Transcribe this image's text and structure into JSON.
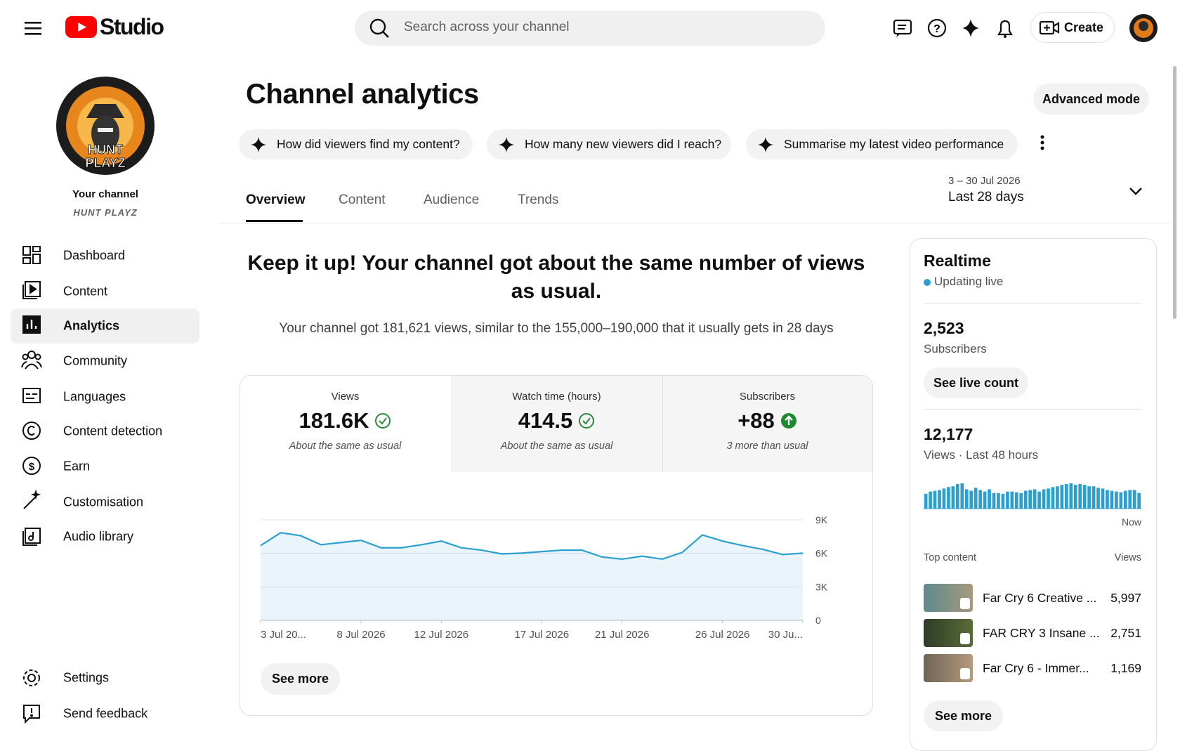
{
  "header": {
    "app_name": "Studio",
    "search_placeholder": "Search across your channel",
    "create": "Create"
  },
  "sidebar": {
    "channel_label": "Your channel",
    "channel_name": "HUNT PLAYZ",
    "avatar_text": [
      "HUNT",
      "PLAYZ"
    ],
    "nav": [
      "Dashboard",
      "Content",
      "Analytics",
      "Community",
      "Languages",
      "Content detection",
      "Earn",
      "Customisation",
      "Audio library"
    ],
    "footer_nav": [
      "Settings",
      "Send feedback"
    ]
  },
  "page": {
    "title": "Channel analytics",
    "advanced_mode": "Advanced mode",
    "suggestions": [
      "How did viewers find my content?",
      "How many new viewers did I reach?",
      "Summarise my latest video performance"
    ],
    "tabs": [
      "Overview",
      "Content",
      "Audience",
      "Trends"
    ],
    "date_range": "3 – 30 Jul 2026",
    "period": "Last 28 days"
  },
  "summary": {
    "headline": "Keep it up! Your channel got about the same number of views as usual.",
    "detail": "Your channel got 181,621 views, similar to the 155,000–190,000 that it usually gets in 28 days"
  },
  "metrics": [
    {
      "label": "Views",
      "value": "181.6K",
      "note": "About the same as usual"
    },
    {
      "label": "Watch time (hours)",
      "value": "414.5",
      "note": "About the same as usual"
    },
    {
      "label": "Subscribers",
      "value": "+88",
      "note": "3 more than usual"
    }
  ],
  "chart_data": [
    {
      "type": "line",
      "color": "#2ba0d0",
      "grid": true,
      "categories": [
        "3 Jul 20...",
        null,
        null,
        null,
        null,
        "8 Jul 2026",
        null,
        null,
        null,
        "12 Jul 2026",
        null,
        null,
        null,
        null,
        "17 Jul 2026",
        null,
        null,
        null,
        "21 Jul 2026",
        null,
        null,
        null,
        null,
        "26 Jul 2026",
        null,
        null,
        null,
        "30 Ju..."
      ],
      "values": [
        6700,
        7850,
        7580,
        6770,
        6970,
        7170,
        6500,
        6500,
        6770,
        7100,
        6500,
        6290,
        5950,
        6020,
        6160,
        6290,
        6290,
        5680,
        5480,
        5750,
        5480,
        6090,
        7650,
        7100,
        6700,
        6360,
        5890,
        6020
      ],
      "ylim": [
        0,
        9000
      ],
      "yticks": [
        {
          "value": 0,
          "label": "0"
        },
        {
          "value": 3000,
          "label": "3K"
        },
        {
          "value": 6000,
          "label": "6K"
        },
        {
          "value": 9000,
          "label": "9K"
        }
      ]
    },
    {
      "type": "bar",
      "color": "#2ba0d0",
      "categories": [
        null,
        null,
        null,
        null,
        null,
        null,
        null,
        null,
        null,
        null,
        null,
        null,
        null,
        null,
        null,
        null,
        null,
        null,
        null,
        null,
        null,
        null,
        null,
        null,
        null,
        null,
        null,
        null,
        null,
        null,
        null,
        null,
        null,
        null,
        null,
        null,
        null,
        null,
        null,
        null,
        null,
        null,
        null,
        null,
        null,
        null,
        null,
        "Now"
      ],
      "values": [
        200,
        230,
        240,
        250,
        270,
        290,
        300,
        330,
        340,
        260,
        240,
        280,
        250,
        230,
        260,
        210,
        210,
        200,
        230,
        230,
        220,
        210,
        240,
        250,
        260,
        230,
        260,
        270,
        290,
        300,
        320,
        330,
        340,
        320,
        330,
        320,
        300,
        300,
        280,
        270,
        250,
        240,
        230,
        220,
        240,
        250,
        250,
        210
      ]
    }
  ],
  "see_more": "See more",
  "realtime": {
    "title": "Realtime",
    "status": "Updating live",
    "subscribers_value": "2,523",
    "subscribers_label": "Subscribers",
    "see_live_count": "See live count",
    "views_value": "12,177",
    "views_label": "Views · Last 48 hours",
    "top_content_label": "Top content",
    "views_column": "Views",
    "items": [
      {
        "title": "Far Cry 6 Creative ...",
        "views": "5,997"
      },
      {
        "title": "FAR CRY 3 Insane ...",
        "views": "2,751"
      },
      {
        "title": "Far Cry 6 - Immer...",
        "views": "1,169"
      }
    ],
    "see_more": "See more"
  }
}
